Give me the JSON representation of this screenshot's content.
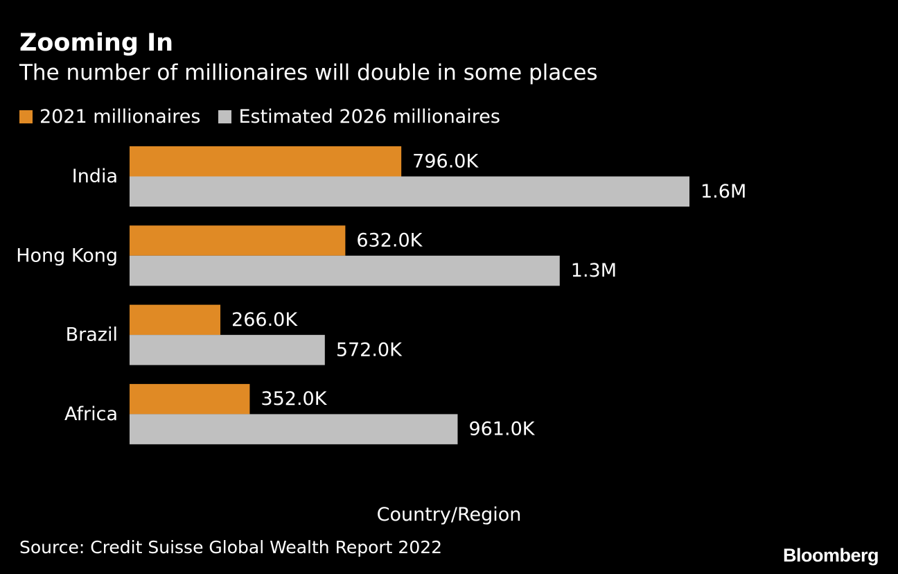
{
  "header": {
    "title": "Zooming In",
    "subtitle": "The number of millionaires will double in some places"
  },
  "legend": [
    {
      "label": "2021 millionaires",
      "color": "#e08a25"
    },
    {
      "label": "Estimated 2026 millionaires",
      "color": "#c0c0c0"
    }
  ],
  "chart_data": {
    "type": "bar",
    "orientation": "horizontal",
    "title": "Zooming In",
    "subtitle": "The number of millionaires will double in some places",
    "categories": [
      "India",
      "Hong Kong",
      "Brazil",
      "Africa"
    ],
    "series": [
      {
        "name": "2021 millionaires",
        "color": "#e08a25",
        "values": [
          796000,
          632000,
          266000,
          352000
        ],
        "labels": [
          "796.0K",
          "632.0K",
          "266.0K",
          "352.0K"
        ]
      },
      {
        "name": "Estimated 2026 millionaires",
        "color": "#c0c0c0",
        "values": [
          1640000,
          1260000,
          572000,
          961000
        ],
        "labels": [
          "1.6M",
          "1.3M",
          "572.0K",
          "961.0K"
        ]
      }
    ],
    "xlim": [
      0,
      1640000
    ],
    "xlabel": "Country/Region",
    "ylabel": "",
    "grid": false,
    "legend_position": "top-left"
  },
  "footer": {
    "source": "Source: Credit Suisse Global Wealth Report 2022",
    "brand": "Bloomberg"
  }
}
